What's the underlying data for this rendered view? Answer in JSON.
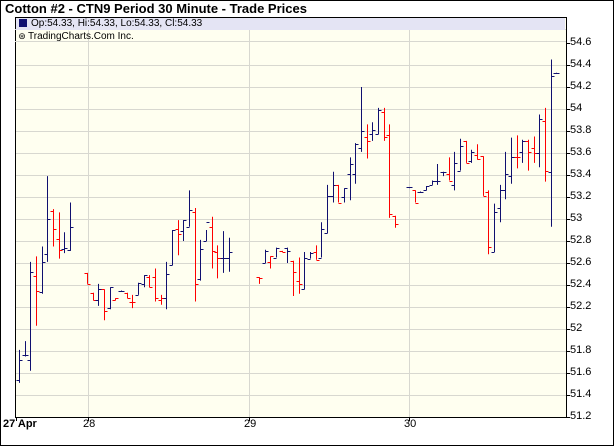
{
  "title": "Cotton #2 - CTN9 Period 30 Minute - Trade Prices",
  "legend": {
    "ohlc_text": "Op:54.33, Hi:54.33, Lo:54.33, Cl:54.33",
    "copyright": "TradingCharts.Com Inc.",
    "series_color": "#101070"
  },
  "colors": {
    "up": "#101070",
    "down": "#ff0000",
    "plot_bg": "#fffff0",
    "grid": "#d8d8d0"
  },
  "chart_data": {
    "type": "ohlc",
    "title": "Cotton #2 - CTN9 Period 30 Minute - Trade Prices",
    "ylim": [
      51.2,
      54.6
    ],
    "yticks": [
      "54.6",
      "54.4",
      "54.2",
      "54",
      "53.8",
      "53.6",
      "53.4",
      "53.2",
      "53",
      "52.8",
      "52.6",
      "52.4",
      "52.2",
      "52",
      "51.8",
      "51.6",
      "51.4",
      "51.2"
    ],
    "grid": true,
    "bar_fields": [
      "open",
      "high",
      "low",
      "close",
      "color"
    ],
    "days": [
      {
        "label": "27 Apr",
        "bars": [
          [
            51.54,
            51.81,
            51.51,
            51.72,
            "u"
          ],
          [
            51.76,
            51.89,
            51.75,
            51.76,
            "u"
          ],
          [
            51.72,
            52.61,
            51.62,
            52.52,
            "u"
          ],
          [
            52.48,
            52.66,
            52.03,
            52.35,
            "d"
          ],
          [
            52.34,
            52.75,
            52.32,
            52.61,
            "u"
          ],
          [
            52.68,
            53.39,
            52.61,
            53.0,
            "u"
          ],
          [
            53.07,
            53.09,
            52.75,
            52.91,
            "d"
          ],
          [
            52.82,
            53.06,
            52.64,
            52.72,
            "d"
          ],
          [
            52.73,
            52.88,
            52.69,
            52.74,
            "u"
          ],
          [
            52.72,
            53.15,
            52.71,
            52.93,
            "u"
          ]
        ]
      },
      {
        "label": "28",
        "bars": [
          [
            52.51,
            52.51,
            52.41,
            52.41,
            "d"
          ],
          [
            52.33,
            52.33,
            52.26,
            52.26,
            "d"
          ],
          [
            52.26,
            52.41,
            52.21,
            52.36,
            "u"
          ],
          [
            52.36,
            52.36,
            52.08,
            52.16,
            "d"
          ],
          [
            52.19,
            52.38,
            52.18,
            52.38,
            "u"
          ],
          [
            52.26,
            52.28,
            52.26,
            52.28,
            "d"
          ],
          [
            52.35,
            52.35,
            52.35,
            52.35,
            "u"
          ],
          [
            52.33,
            52.33,
            52.28,
            52.28,
            "d"
          ],
          [
            52.25,
            52.31,
            52.19,
            52.25,
            "d"
          ],
          [
            52.31,
            52.42,
            52.31,
            52.42,
            "u"
          ],
          [
            52.41,
            52.49,
            52.38,
            52.49,
            "u"
          ],
          [
            52.47,
            52.49,
            52.38,
            52.38,
            "d"
          ],
          [
            52.47,
            52.55,
            52.25,
            52.28,
            "d"
          ],
          [
            52.26,
            52.31,
            52.22,
            52.28,
            "d"
          ],
          [
            52.28,
            52.61,
            52.18,
            52.5,
            "u"
          ],
          [
            52.58,
            52.9,
            52.58,
            52.9,
            "u"
          ],
          [
            52.91,
            52.99,
            52.67,
            52.86,
            "d"
          ],
          [
            52.89,
            52.99,
            52.8,
            52.99,
            "u"
          ],
          [
            52.93,
            53.26,
            52.93,
            53.08,
            "u"
          ],
          [
            53.06,
            53.1,
            52.25,
            52.41,
            "d"
          ],
          [
            52.45,
            52.81,
            52.44,
            52.73,
            "u"
          ],
          [
            52.8,
            52.9,
            52.8,
            52.97,
            "u"
          ],
          [
            52.93,
            53.02,
            52.55,
            52.71,
            "d"
          ],
          [
            52.7,
            52.76,
            52.46,
            52.65,
            "d"
          ],
          [
            52.65,
            52.89,
            52.51,
            52.65,
            "u"
          ],
          [
            52.65,
            52.83,
            52.52,
            52.7,
            "u"
          ]
        ]
      },
      {
        "label": "29",
        "bars": [
          [
            52.47,
            52.47,
            52.41,
            52.46,
            "d"
          ],
          [
            52.6,
            52.72,
            52.6,
            52.71,
            "u"
          ],
          [
            52.61,
            52.66,
            52.55,
            52.66,
            "d"
          ],
          [
            52.65,
            52.74,
            52.65,
            52.74,
            "u"
          ],
          [
            52.71,
            52.71,
            52.7,
            52.7,
            "d"
          ],
          [
            52.74,
            52.74,
            52.6,
            52.71,
            "u"
          ],
          [
            52.62,
            52.62,
            52.3,
            52.52,
            "d"
          ],
          [
            52.44,
            52.65,
            52.32,
            52.41,
            "d"
          ],
          [
            52.36,
            52.7,
            52.36,
            52.65,
            "u"
          ],
          [
            52.64,
            52.7,
            52.64,
            52.69,
            "u"
          ],
          [
            52.7,
            52.76,
            52.63,
            52.63,
            "d"
          ],
          [
            52.65,
            52.97,
            52.65,
            52.91,
            "u"
          ],
          [
            52.87,
            53.31,
            52.87,
            53.21,
            "u"
          ],
          [
            53.21,
            53.43,
            53.15,
            53.31,
            "u"
          ],
          [
            53.31,
            53.31,
            53.15,
            53.15,
            "d"
          ],
          [
            53.2,
            53.28,
            53.15,
            53.28,
            "u"
          ],
          [
            53.41,
            53.56,
            53.17,
            53.5,
            "u"
          ],
          [
            53.41,
            53.69,
            53.32,
            53.68,
            "u"
          ],
          [
            53.65,
            54.2,
            53.61,
            53.8,
            "u"
          ],
          [
            53.75,
            53.86,
            53.55,
            53.71,
            "d"
          ],
          [
            53.77,
            53.88,
            53.71,
            53.81,
            "u"
          ],
          [
            53.77,
            54.01,
            53.77,
            53.99,
            "u"
          ],
          [
            53.97,
            54.01,
            53.71,
            53.75,
            "d"
          ],
          [
            53.76,
            53.86,
            53.01,
            53.05,
            "d"
          ],
          [
            53.03,
            53.03,
            52.92,
            52.95,
            "d"
          ]
        ]
      },
      {
        "label": "30",
        "bars": [
          [
            53.29,
            53.29,
            53.29,
            53.29,
            "u"
          ],
          [
            53.26,
            53.26,
            53.15,
            53.15,
            "d"
          ],
          [
            53.25,
            53.25,
            53.25,
            53.25,
            "u"
          ],
          [
            53.26,
            53.3,
            53.26,
            53.3,
            "u"
          ],
          [
            53.31,
            53.35,
            53.31,
            53.35,
            "u"
          ],
          [
            53.35,
            53.5,
            53.31,
            53.35,
            "u"
          ],
          [
            53.43,
            53.43,
            53.39,
            53.43,
            "u"
          ],
          [
            53.41,
            53.56,
            53.35,
            53.35,
            "d"
          ],
          [
            53.31,
            53.61,
            53.26,
            53.51,
            "u"
          ],
          [
            53.44,
            53.73,
            53.44,
            53.66,
            "u"
          ],
          [
            53.71,
            53.71,
            53.51,
            53.51,
            "d"
          ],
          [
            53.53,
            53.63,
            53.51,
            53.61,
            "u"
          ],
          [
            53.58,
            53.68,
            53.54,
            53.55,
            "d"
          ],
          [
            53.57,
            53.57,
            53.21,
            53.21,
            "d"
          ],
          [
            53.25,
            53.26,
            52.68,
            52.75,
            "d"
          ],
          [
            52.7,
            53.14,
            52.7,
            53.06,
            "u"
          ],
          [
            53.1,
            53.31,
            52.97,
            53.26,
            "u"
          ],
          [
            53.26,
            53.61,
            53.18,
            53.41,
            "u"
          ],
          [
            53.39,
            53.74,
            53.32,
            53.56,
            "u"
          ],
          [
            53.56,
            53.76,
            53.46,
            53.56,
            "d"
          ],
          [
            53.61,
            53.72,
            53.51,
            53.71,
            "u"
          ],
          [
            53.71,
            53.72,
            53.44,
            53.61,
            "d"
          ],
          [
            53.65,
            53.75,
            53.51,
            53.6,
            "d"
          ],
          [
            53.6,
            53.95,
            53.47,
            53.91,
            "u"
          ],
          [
            53.89,
            54.01,
            53.34,
            53.44,
            "d"
          ],
          [
            53.43,
            54.45,
            52.93,
            54.3,
            "u"
          ],
          [
            54.33,
            54.33,
            54.33,
            54.33,
            "u"
          ]
        ]
      }
    ]
  }
}
